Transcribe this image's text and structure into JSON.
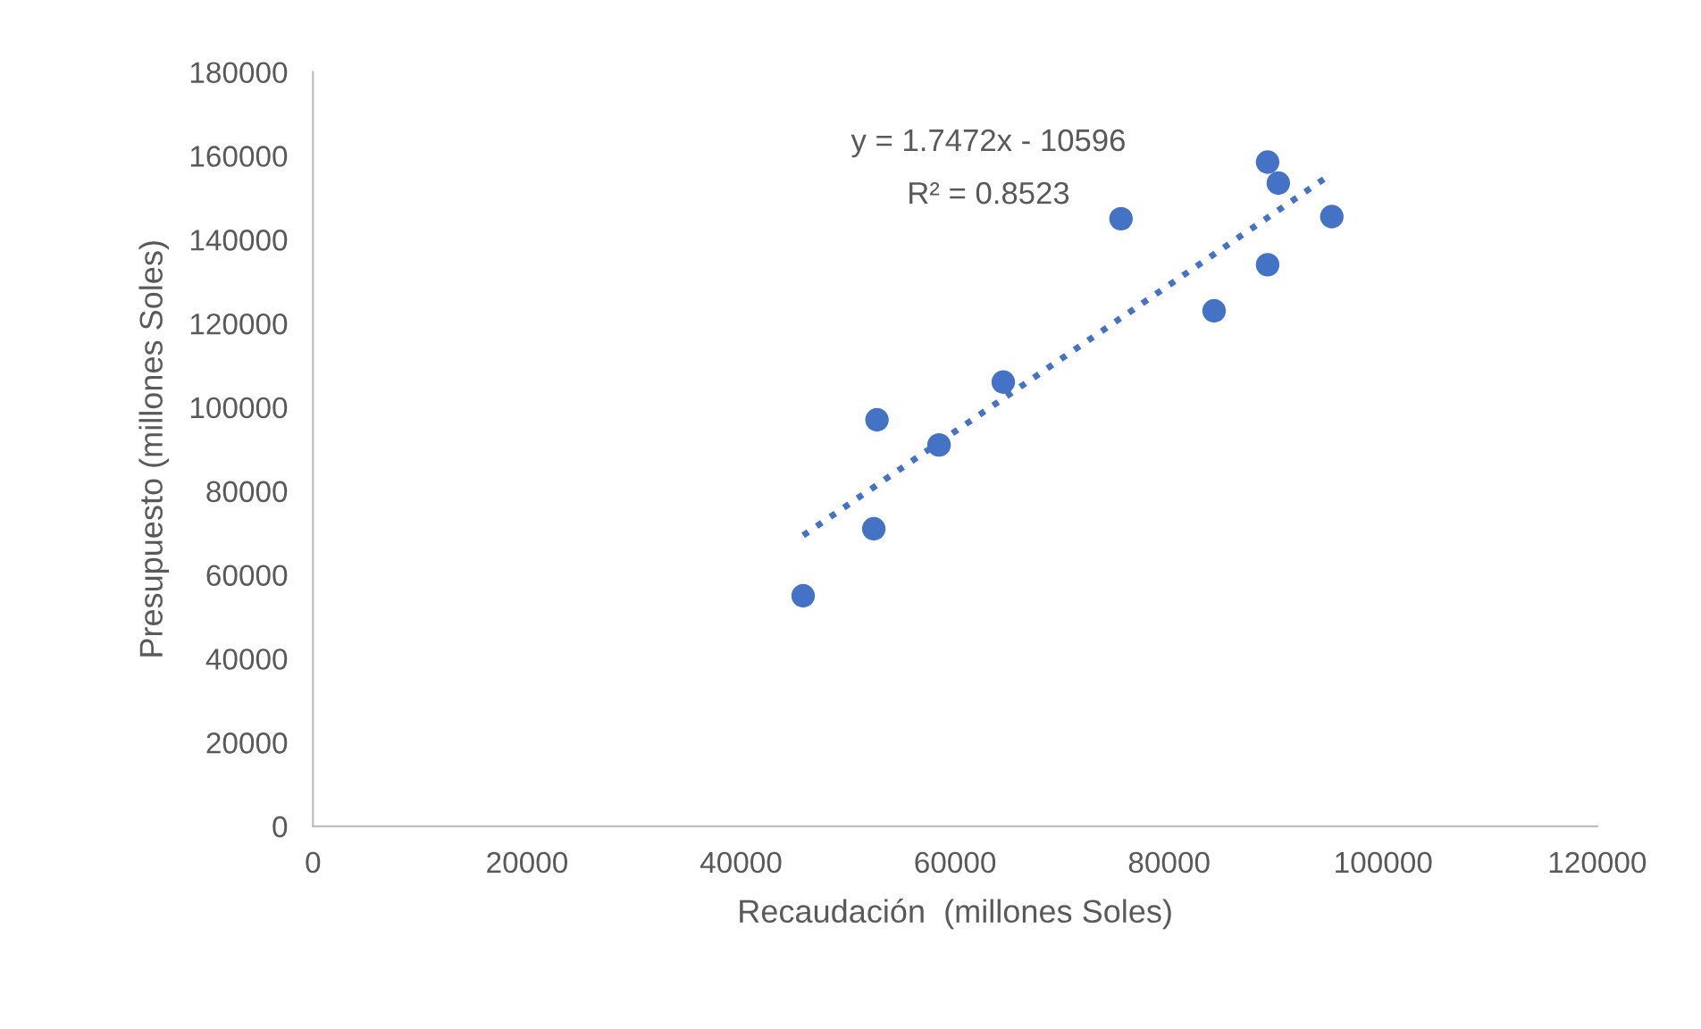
{
  "chart_data": {
    "type": "scatter",
    "xlabel": "Recaudación  (millones Soles)",
    "ylabel": "Presupuesto (millones Soles)",
    "series": [
      {
        "color": "#4472c4",
        "marker": "circle",
        "x": [
          45800,
          52400,
          52700,
          58500,
          64500,
          75500,
          84200,
          89200,
          89200,
          90200,
          95200
        ],
        "values": [
          55000,
          71000,
          97000,
          91000,
          106000,
          145000,
          123000,
          134000,
          158500,
          153500,
          145500
        ]
      },
      {
        "type": "line",
        "color": "#4472c4",
        "line_style": "dotted",
        "x": [
          45800,
          94600
        ],
        "values": [
          69400,
          154700
        ]
      }
    ],
    "annotations": [
      "y = 1.7472x - 10596",
      "R² = 0.8523"
    ],
    "xlim": [
      0,
      120000
    ],
    "xticks": [
      0,
      20000,
      40000,
      60000,
      80000,
      100000,
      120000
    ],
    "ylim": [
      0,
      180000
    ],
    "yticks": [
      0,
      20000,
      40000,
      60000,
      80000,
      100000,
      120000,
      140000,
      160000,
      180000
    ],
    "grid": false,
    "legend": false
  }
}
